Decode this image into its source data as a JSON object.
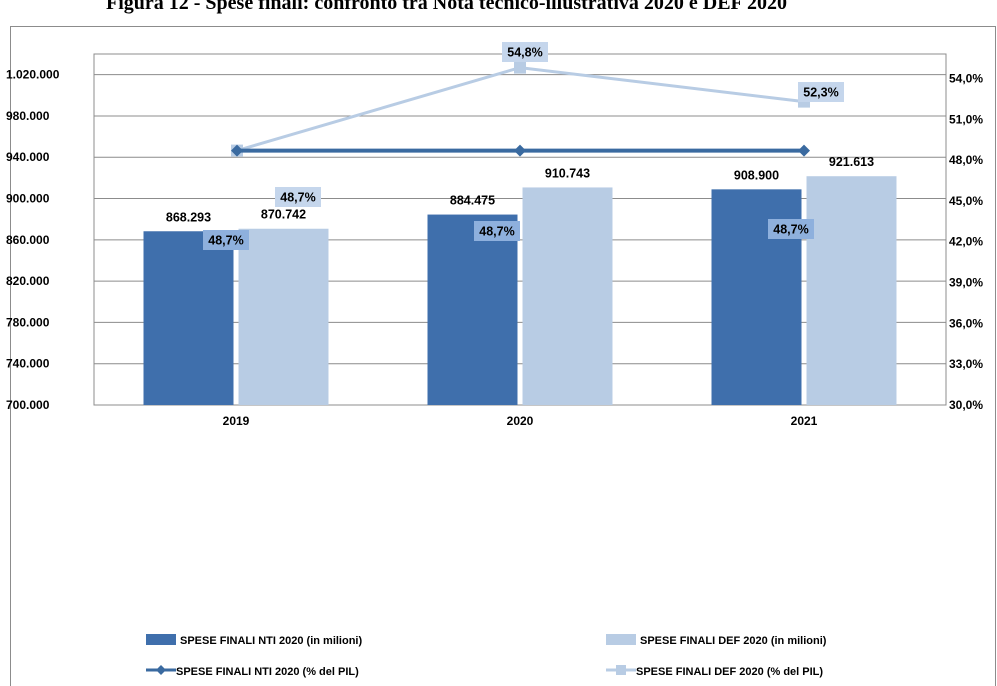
{
  "chart_data": {
    "type": "bar",
    "title": "Figura 12 - Spese finali: confronto tra Nota tecnico-illustrativa 2020 e DEF 2020",
    "categories": [
      "2019",
      "2020",
      "2021"
    ],
    "y_left": {
      "range": [
        700000,
        1040000
      ],
      "ticks": [
        "700.000",
        "740.000",
        "780.000",
        "820.000",
        "860.000",
        "900.000",
        "940.000",
        "980.000",
        "1.020.000"
      ],
      "tick_values": [
        700000,
        740000,
        780000,
        820000,
        860000,
        900000,
        940000,
        980000,
        1020000
      ]
    },
    "y_right": {
      "range": [
        30.0,
        55.8
      ],
      "ticks": [
        "30,0%",
        "33,0%",
        "36,0%",
        "39,0%",
        "42,0%",
        "45,0%",
        "48,0%",
        "51,0%",
        "54,0%"
      ],
      "tick_values": [
        30,
        33,
        36,
        39,
        42,
        45,
        48,
        51,
        54
      ]
    },
    "series": [
      {
        "name": "SPESE FINALI NTI 2020 (in milioni)",
        "kind": "bar",
        "axis": "left",
        "color": "#3f6fac",
        "values": [
          868293,
          884475,
          908900
        ],
        "labels": [
          "868.293",
          "884.475",
          "908.900"
        ]
      },
      {
        "name": "SPESE FINALI DEF 2020 (in milioni)",
        "kind": "bar",
        "axis": "left",
        "color": "#b8cce4",
        "values": [
          870742,
          910743,
          921613
        ],
        "labels": [
          "870.742",
          "910.743",
          "921.613"
        ]
      },
      {
        "name": "SPESE FINALI NTI 2020 (% del PIL)",
        "kind": "line",
        "axis": "right",
        "color": "#3a6aa0",
        "marker": "diamond",
        "values": [
          48.7,
          48.7,
          48.7
        ],
        "labels": [
          "48,7%",
          "48,7%",
          "48,7%"
        ]
      },
      {
        "name": "SPESE FINALI DEF 2020 (% del PIL)",
        "kind": "line",
        "axis": "right",
        "color": "#b8cce4",
        "marker": "square",
        "values": [
          48.7,
          54.8,
          52.3
        ],
        "labels": [
          "48,7%",
          "54,8%",
          "52,3%"
        ]
      }
    ],
    "grid": true,
    "legend_position": "bottom"
  }
}
